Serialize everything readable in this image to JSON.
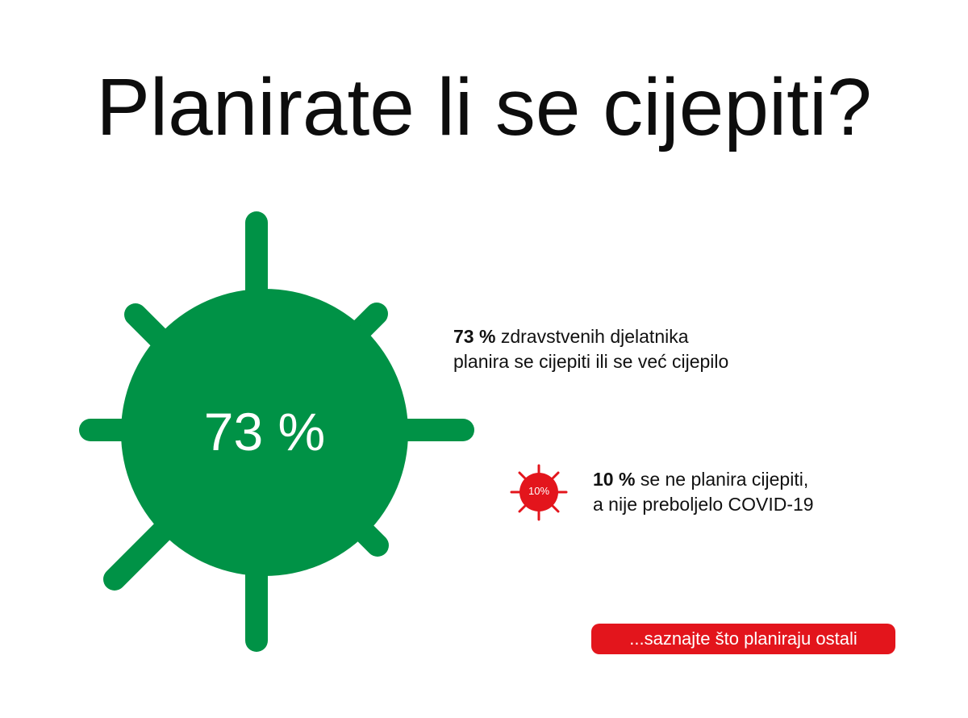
{
  "title": "Planirate li se cijepiti?",
  "main_virus": {
    "label": "73 %",
    "color": "#009246"
  },
  "stat_vaccinated": {
    "value": "73 %",
    "line1": " zdravstvenih djelatnika",
    "line2": "planira se cijepiti ili se već cijepilo"
  },
  "small_virus": {
    "label": "10%",
    "color": "#e3151c"
  },
  "stat_not_planning": {
    "value": "10 %",
    "line1": " se ne planira cijepiti,",
    "line2": "a nije preboljelo COVID-19"
  },
  "cta": {
    "label": "...saznajte što planiraju ostali",
    "color": "#e3151c"
  }
}
